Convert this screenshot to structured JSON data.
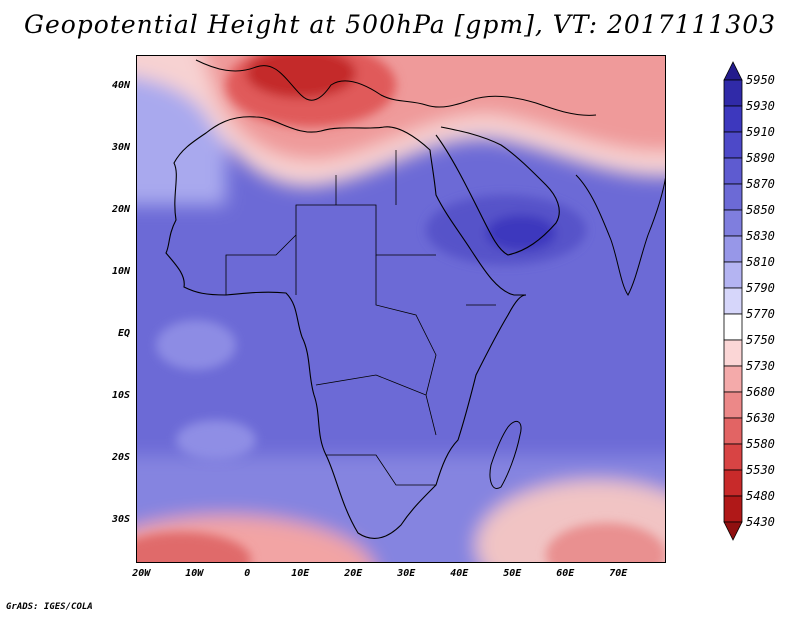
{
  "title": "Geopotential Height at 500hPa [gpm], VT: 2017111303",
  "credit": "GrADS: IGES/COLA",
  "lat_labels": [
    "40N",
    "30N",
    "20N",
    "10N",
    "EQ",
    "10S",
    "20S",
    "30S"
  ],
  "lon_labels": [
    "20W",
    "10W",
    "0",
    "10E",
    "20E",
    "30E",
    "40E",
    "50E",
    "60E",
    "70E"
  ],
  "colorbar": {
    "levels": [
      "5950",
      "5930",
      "5910",
      "5890",
      "5870",
      "5850",
      "5830",
      "5810",
      "5790",
      "5770",
      "5750",
      "5730",
      "5680",
      "5630",
      "5580",
      "5530",
      "5480",
      "5430"
    ],
    "colors": [
      "#241c8c",
      "#302aa8",
      "#3d38be",
      "#4d49c8",
      "#5e5bd0",
      "#6c6ad6",
      "#7f7ede",
      "#9797e8",
      "#b4b4f2",
      "#d6d6fa",
      "#ffffff",
      "#fbd6d6",
      "#f4aaaa",
      "#ec8888",
      "#e26464",
      "#d84444",
      "#c82a2a",
      "#b01818",
      "#901010"
    ]
  },
  "chart_data": {
    "type": "heatmap",
    "title": "Geopotential Height at 500hPa [gpm], VT: 2017111303",
    "variable": "500 hPa geopotential height",
    "units": "gpm",
    "valid_time": "2017111303",
    "lon_range": [
      -21,
      79
    ],
    "lat_range": [
      -37,
      45
    ],
    "contour_levels": [
      5430,
      5480,
      5530,
      5580,
      5630,
      5680,
      5730,
      5750,
      5770,
      5790,
      5810,
      5830,
      5850,
      5870,
      5890,
      5910,
      5930,
      5950
    ],
    "features": [
      {
        "name": "trough low (Mediterranean / Balkans)",
        "approx_lon": 10,
        "approx_lat": 43,
        "value_range": "5480-5530"
      },
      {
        "name": "ridge high (southern Arabian Peninsula)",
        "approx_lon": 45,
        "approx_lat": 15,
        "value_range": "5890-5910"
      },
      {
        "name": "south-western low",
        "approx_lon": -15,
        "approx_lat": -36,
        "value_range": "5630-5680"
      },
      {
        "name": "south-eastern low",
        "approx_lon": 68,
        "approx_lat": -33,
        "value_range": "5680-5730"
      }
    ]
  }
}
